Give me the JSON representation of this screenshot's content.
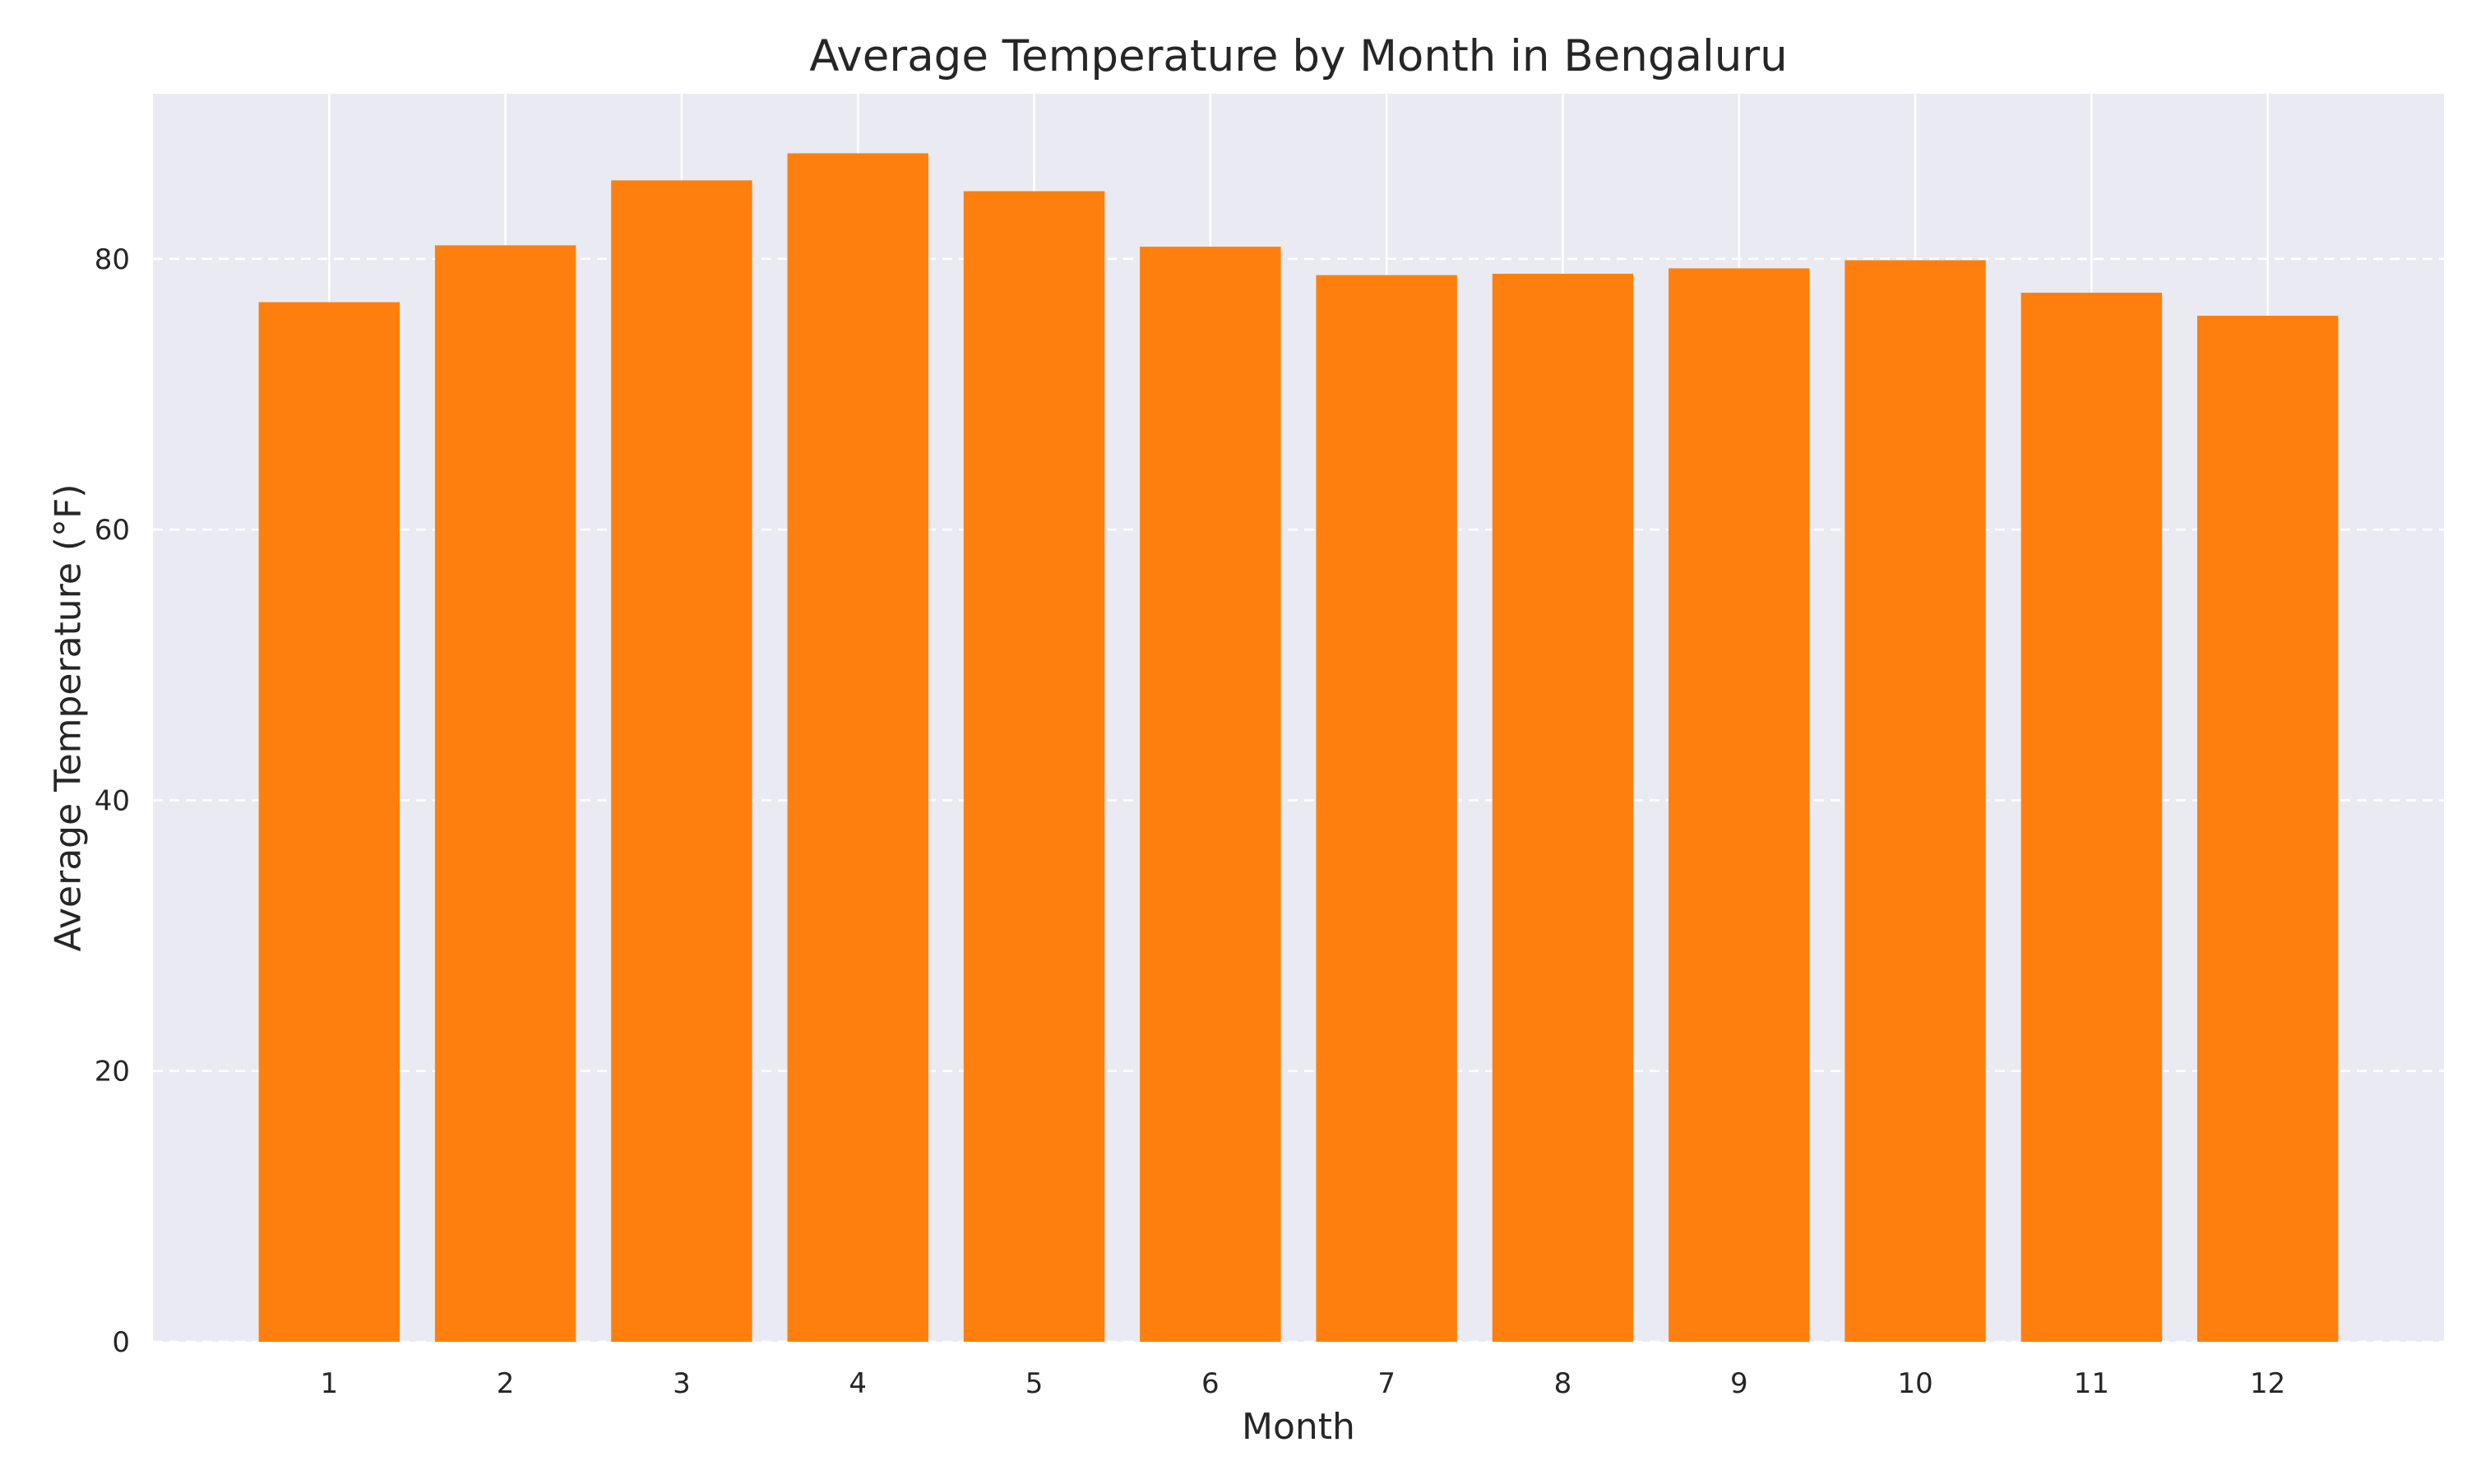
{
  "chart_data": {
    "type": "bar",
    "title": "Average Temperature by Month in Bengaluru",
    "xlabel": "Month",
    "ylabel": "Average Temperature (°F)",
    "categories": [
      "1",
      "2",
      "3",
      "4",
      "5",
      "6",
      "7",
      "8",
      "9",
      "10",
      "11",
      "12"
    ],
    "values": [
      76.8,
      81.0,
      85.8,
      87.8,
      85.0,
      80.9,
      78.8,
      78.9,
      79.3,
      79.9,
      77.5,
      75.8
    ],
    "ylim": [
      0,
      92.2
    ],
    "yticks": [
      "0",
      "20",
      "40",
      "60",
      "80"
    ],
    "grid": true,
    "grid_style": "horizontal dashed, vertical solid",
    "colors": {
      "bar": "#ff7f0e",
      "plot_background": "#eaeaf2",
      "grid": "#ffffff",
      "text": "#262626"
    }
  }
}
